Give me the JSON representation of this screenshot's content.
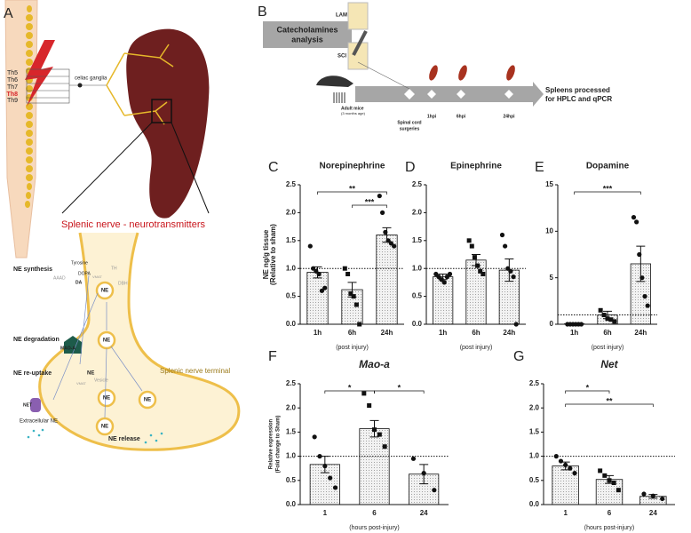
{
  "panel_letters": [
    "A",
    "B",
    "C",
    "D",
    "E",
    "F",
    "G"
  ],
  "panel_a": [
    "Th5",
    "Th6",
    "Th7",
    "Th8",
    "Th9",
    "celiac ganglia",
    "Splenic nerve - neurotransmitters",
    "NE synthesis",
    "Tyrosine",
    "TH",
    "DOPA",
    "AAAD",
    "DA",
    "VMAT",
    "DBH",
    "NE",
    "NE degradation",
    "MAO-A",
    "NE",
    "NE re-uptake",
    "NE",
    "VMAT",
    "Vesicle",
    "NE",
    "NE",
    "NE",
    "Splenic nerve terminal",
    "NET",
    "Extracellular NE",
    "NE release"
  ],
  "panel_b": [
    "Catecholamines",
    "analysis",
    "LAM",
    "SCI",
    "Adult mice",
    "(3 months age)",
    "Spinal cord",
    "surgeries",
    "1hpi",
    "6hpi",
    "24hpi",
    "Spleens processed",
    "for HPLC and qPCR"
  ],
  "chart_data": [
    {
      "type": "bar",
      "title": "Norepinephrine",
      "title_style": "normal",
      "ylabel": [
        "NE ng/g tissue",
        "(Relative to sham)"
      ],
      "xlabel": "(post injury)",
      "categories": [
        "1h",
        "6h",
        "24h"
      ],
      "values": [
        0.93,
        0.62,
        1.6
      ],
      "errors": [
        0.1,
        0.13,
        0.13
      ],
      "points": [
        [
          1.4,
          1.0,
          0.95,
          0.9,
          0.6,
          0.65
        ],
        [
          1.0,
          0.9,
          0.55,
          0.5,
          0.35,
          0.0
        ],
        [
          2.3,
          2.0,
          1.65,
          1.5,
          1.45,
          1.4
        ]
      ],
      "markers": [
        "circle",
        "square",
        "circle"
      ],
      "ylim": [
        0,
        2.5
      ],
      "yticks": [
        {
          "value": 0,
          "label": "0.0"
        },
        0.5,
        {
          "value": 1,
          "label": "1.0"
        },
        1.5,
        {
          "value": 2,
          "label": "2.0"
        },
        2.5
      ],
      "refline": 1,
      "significance": [
        {
          "groups": [
            "1h",
            "24h"
          ],
          "label": "**"
        },
        {
          "groups": [
            "6h",
            "24h"
          ],
          "label": "***"
        }
      ]
    },
    {
      "type": "bar",
      "title": "Epinephrine",
      "title_style": "normal",
      "xlabel": "(post injury)",
      "categories": [
        "1h",
        "6h",
        "24h"
      ],
      "values": [
        0.85,
        1.15,
        0.97
      ],
      "errors": [
        0.05,
        0.1,
        0.2
      ],
      "points": [
        [
          0.9,
          0.85,
          0.8,
          0.75,
          0.85,
          0.9
        ],
        [
          1.5,
          1.4,
          1.2,
          1.05,
          0.95,
          0.9
        ],
        [
          1.6,
          1.4,
          1.0,
          0.95,
          0.85,
          0.0
        ]
      ],
      "markers": [
        "circle",
        "square",
        "circle"
      ],
      "ylim": [
        0,
        2.5
      ],
      "yticks": [
        {
          "value": 0,
          "label": "0.0"
        },
        0.5,
        {
          "value": 1,
          "label": "1.0"
        },
        1.5,
        {
          "value": 2,
          "label": "2.0"
        },
        2.5
      ],
      "refline": 1,
      "significance": []
    },
    {
      "type": "bar",
      "title": "Dopamine",
      "title_style": "normal",
      "xlabel": "(post injury)",
      "categories": [
        "1h",
        "6h",
        "24h"
      ],
      "values": [
        0.05,
        1.0,
        6.5
      ],
      "errors": [
        0.02,
        0.4,
        1.9
      ],
      "points": [
        [
          0,
          0,
          0,
          0,
          0,
          0
        ],
        [
          1.5,
          1.0,
          0.6,
          0.5,
          0.3
        ],
        [
          11.5,
          11,
          7.5,
          5,
          3,
          2
        ]
      ],
      "markers": [
        "circle",
        "square",
        "circle"
      ],
      "ylim": [
        0,
        15
      ],
      "yticks": [
        0,
        5,
        10,
        15
      ],
      "refline": 1,
      "significance": [
        {
          "groups": [
            "1h",
            "24h"
          ],
          "label": "***"
        }
      ]
    },
    {
      "type": "bar",
      "title": "Mao-a",
      "title_style": "italic",
      "ylabel": [
        "Relative expression",
        "(Fold change to Sham)"
      ],
      "xlabel": "(hours post-injury)",
      "categories": [
        "1",
        "6",
        "24"
      ],
      "values": [
        0.83,
        1.57,
        0.63
      ],
      "errors": [
        0.17,
        0.17,
        0.2
      ],
      "points": [
        [
          1.4,
          1.0,
          0.8,
          0.55,
          0.35
        ],
        [
          2.3,
          2.05,
          1.55,
          1.45,
          1.2
        ],
        [
          0.95,
          0.65,
          0.3
        ]
      ],
      "markers": [
        "circle",
        "square",
        "circle"
      ],
      "ylim": [
        0,
        2.5
      ],
      "yticks": [
        {
          "value": 0,
          "label": "0.0"
        },
        0.5,
        {
          "value": 1,
          "label": "1.0"
        },
        1.5,
        {
          "value": 2,
          "label": "2.0"
        },
        2.5
      ],
      "refline": 1,
      "significance": [
        {
          "groups": [
            "1",
            "6"
          ],
          "label": "*"
        },
        {
          "groups": [
            "6",
            "24"
          ],
          "label": "*"
        }
      ]
    },
    {
      "type": "bar",
      "title": "Net",
      "title_style": "italic",
      "xlabel": "(hours post-injury)",
      "categories": [
        "1",
        "6",
        "24"
      ],
      "values": [
        0.8,
        0.52,
        0.17
      ],
      "errors": [
        0.08,
        0.08,
        0.04
      ],
      "points": [
        [
          1.0,
          0.9,
          0.82,
          0.75,
          0.65
        ],
        [
          0.7,
          0.6,
          0.5,
          0.45,
          0.3
        ],
        [
          0.22,
          0.18,
          0.12
        ]
      ],
      "markers": [
        "circle",
        "square",
        "circle"
      ],
      "ylim": [
        0,
        2.5
      ],
      "yticks": [
        {
          "value": 0,
          "label": "0.0"
        },
        0.5,
        {
          "value": 1,
          "label": "1.0"
        },
        1.5,
        {
          "value": 2,
          "label": "2.0"
        },
        2.5
      ],
      "refline": 1,
      "significance": [
        {
          "groups": [
            "1",
            "6"
          ],
          "label": "*"
        },
        {
          "groups": [
            "1",
            "24"
          ],
          "label": "**"
        }
      ]
    }
  ]
}
